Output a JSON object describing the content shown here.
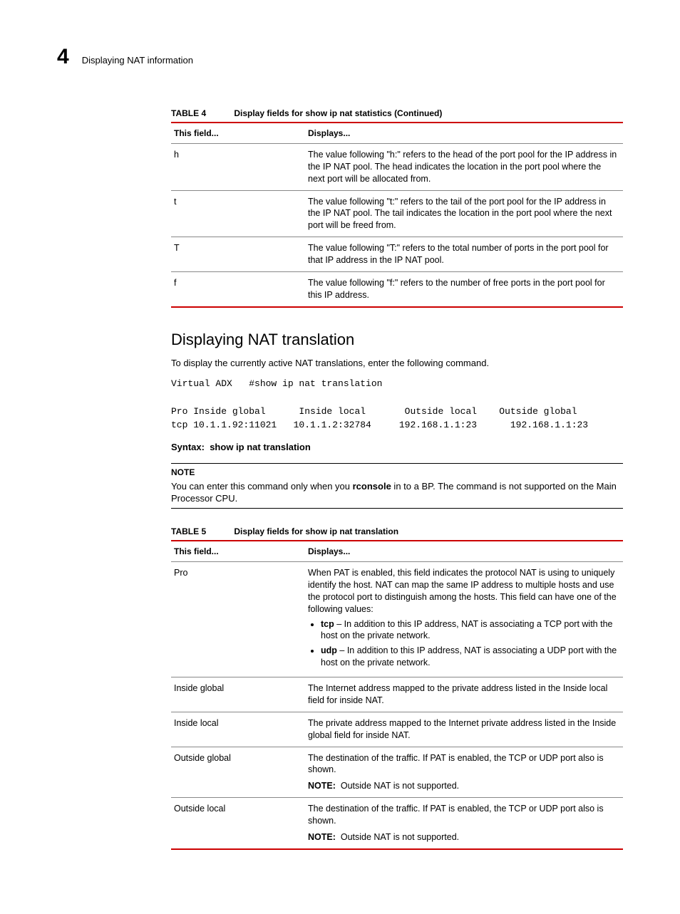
{
  "header": {
    "page_number": "4",
    "page_title": "Displaying NAT information"
  },
  "table4": {
    "caption_label": "TABLE 4",
    "caption_text": "Display fields for show ip nat statistics  (Continued)",
    "col1": "This field...",
    "col2": "Displays...",
    "rows": [
      {
        "field": "h",
        "desc": "The value following \"h:\" refers to the head of the port pool for the IP address in the IP NAT pool. The head indicates the location in the port pool where the next port will be allocated from."
      },
      {
        "field": "t",
        "desc": "The value following \"t:\" refers to the tail of the port pool for the IP address in the IP NAT pool. The tail indicates the location in the port pool where the next port will be freed from."
      },
      {
        "field": "T",
        "desc": "The value following \"T:\" refers to the total number of ports in the port pool for that IP address in the IP NAT pool."
      },
      {
        "field": "f",
        "desc": "The value following \"f:\" refers to the number of free ports in the port pool for this IP address."
      }
    ]
  },
  "section": {
    "heading": "Displaying NAT translation",
    "intro": "To display the currently active NAT translations, enter the following command.",
    "cmd_line1": "Virtual ADX   #show ip nat translation",
    "cmd_line2": "Pro Inside global      Inside local       Outside local    Outside global",
    "cmd_line3": "tcp 10.1.1.92:11021   10.1.1.2:32784     192.168.1.1:23      192.168.1.1:23",
    "syntax_label": "Syntax:",
    "syntax_cmd": "show ip nat translation"
  },
  "note": {
    "label": "NOTE",
    "body_pre": "You can enter this command only when you ",
    "body_bold": "rconsole",
    "body_post": " in to a BP. The command is not supported on the Main Processor CPU."
  },
  "table5": {
    "caption_label": "TABLE 5",
    "caption_text": "Display fields for show ip nat translation",
    "col1": "This field...",
    "col2": "Displays...",
    "rows": {
      "pro": {
        "field": "Pro",
        "desc": "When PAT is enabled, this field indicates the protocol NAT is using to uniquely identify the host. NAT can map the same IP address to multiple hosts and use the protocol port to distinguish among the hosts. This field can have one of the following values:",
        "tcp_label": "tcp",
        "tcp_text": " – In addition to this IP address, NAT is associating a TCP port with the host on the private network.",
        "udp_label": "udp",
        "udp_text": " – In addition to this IP address, NAT is associating a UDP port with the host on the private network."
      },
      "inside_global": {
        "field": "Inside global",
        "desc": "The Internet address mapped to the private address listed in the Inside local field for inside NAT."
      },
      "inside_local": {
        "field": "Inside local",
        "desc": "The private address mapped to the Internet private address listed in the Inside global field for inside NAT."
      },
      "outside_global": {
        "field": "Outside global",
        "desc": "The destination of the traffic. If PAT is enabled, the TCP or UDP port also is shown.",
        "note_label": "NOTE:",
        "note_text": "Outside NAT is not supported."
      },
      "outside_local": {
        "field": "Outside local",
        "desc": "The destination of the traffic. If PAT is enabled, the TCP or UDP port also is shown.",
        "note_label": "NOTE:",
        "note_text": "Outside NAT is not supported."
      }
    }
  }
}
